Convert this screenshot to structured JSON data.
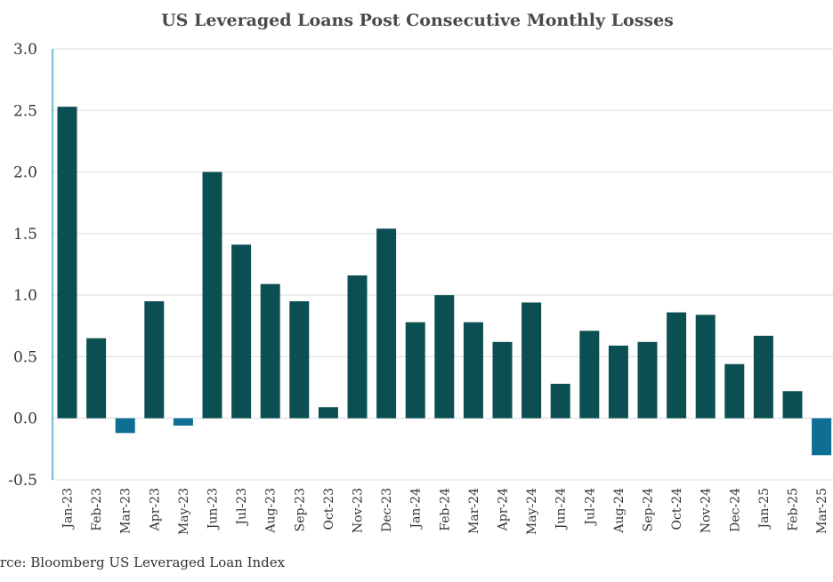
{
  "chart_data": {
    "type": "bar",
    "title": "US Leveraged Loans Post Consecutive Monthly Losses",
    "source": "rce: Bloomberg US Leveraged Loan Index",
    "categories": [
      "Jan-23",
      "Feb-23",
      "Mar-23",
      "Apr-23",
      "May-23",
      "Jun-23",
      "Jul-23",
      "Aug-23",
      "Sep-23",
      "Oct-23",
      "Nov-23",
      "Dec-23",
      "Jan-24",
      "Feb-24",
      "Mar-24",
      "Apr-24",
      "May-24",
      "Jun-24",
      "Jul-24",
      "Aug-24",
      "Sep-24",
      "Oct-24",
      "Nov-24",
      "Dec-24",
      "Jan-25",
      "Feb-25",
      "Mar-25"
    ],
    "values": [
      2.53,
      0.65,
      -0.12,
      0.95,
      -0.06,
      2.0,
      1.41,
      1.09,
      0.95,
      0.09,
      1.16,
      1.54,
      0.78,
      1.0,
      0.78,
      0.62,
      0.94,
      0.28,
      0.71,
      0.59,
      0.62,
      0.86,
      0.84,
      0.44,
      0.67,
      0.22,
      -0.3
    ],
    "y_ticks": [
      "3.0",
      "2.5",
      "2.0",
      "1.5",
      "1.0",
      "0.5",
      "0.0",
      "-0.5"
    ],
    "ylim": [
      -0.5,
      3.0
    ],
    "grid": true,
    "colors": {
      "positive": "#0b4f52",
      "negative": "#0e6e94",
      "axis": "#1f8fb0"
    }
  }
}
